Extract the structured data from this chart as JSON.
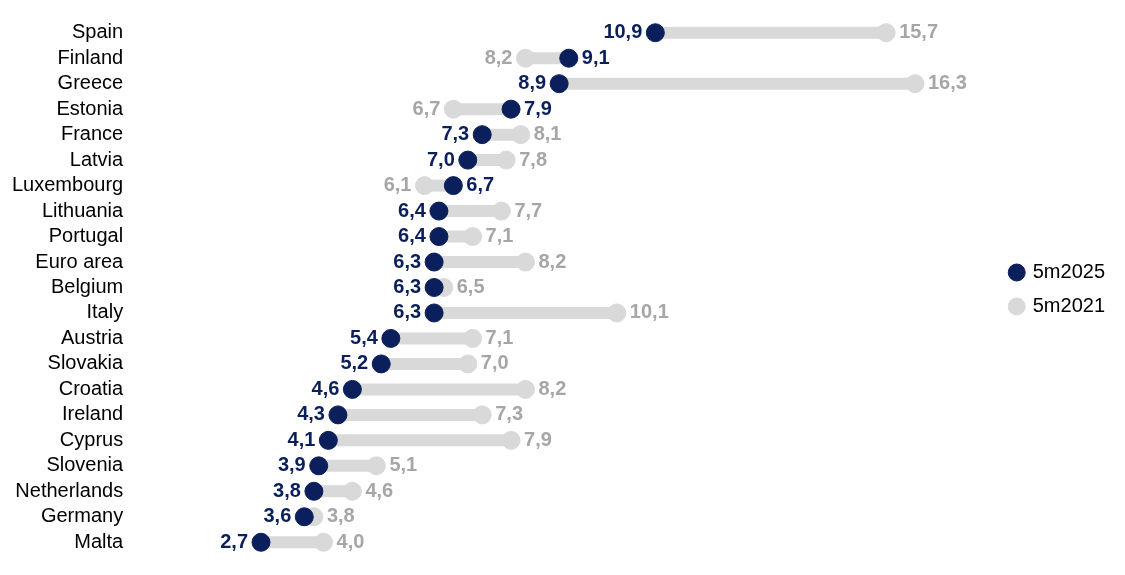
{
  "chart_data": {
    "type": "scatter",
    "orientation": "horizontal",
    "categories": [
      "Spain",
      "Finland",
      "Greece",
      "Estonia",
      "France",
      "Latvia",
      "Luxembourg",
      "Lithuania",
      "Portugal",
      "Euro area",
      "Belgium",
      "Italy",
      "Austria",
      "Slovakia",
      "Croatia",
      "Ireland",
      "Cyprus",
      "Slovenia",
      "Netherlands",
      "Germany",
      "Malta"
    ],
    "series": [
      {
        "name": "5m2025",
        "color": "#0b1f5c",
        "values": [
          10.9,
          9.1,
          8.9,
          7.9,
          7.3,
          7.0,
          6.7,
          6.4,
          6.4,
          6.3,
          6.3,
          6.3,
          5.4,
          5.2,
          4.6,
          4.3,
          4.1,
          3.9,
          3.8,
          3.6,
          2.7
        ],
        "value_labels": [
          "10,9",
          "9,1",
          "8,9",
          "7,9",
          "7,3",
          "7,0",
          "6,7",
          "6,4",
          "6,4",
          "6,3",
          "6,3",
          "6,3",
          "5,4",
          "5,2",
          "4,6",
          "4,3",
          "4,1",
          "3,9",
          "3,8",
          "3,6",
          "2,7"
        ]
      },
      {
        "name": "5m2021",
        "color": "#d9d9d9",
        "values": [
          15.7,
          8.2,
          16.3,
          6.7,
          8.1,
          7.8,
          6.1,
          7.7,
          7.1,
          8.2,
          6.5,
          10.1,
          7.1,
          7.0,
          8.2,
          7.3,
          7.9,
          5.1,
          4.6,
          3.8,
          4.0
        ],
        "value_labels": [
          "15,7",
          "8,2",
          "16,3",
          "6,7",
          "8,1",
          "7,8",
          "6,1",
          "7,7",
          "7,1",
          "8,2",
          "6,5",
          "10,1",
          "7,1",
          "7,0",
          "8,2",
          "7,3",
          "7,9",
          "5,1",
          "4,6",
          "3,8",
          "4,0"
        ]
      }
    ],
    "tick_labels": "y",
    "legend": "right",
    "marker": "circle",
    "grid": false
  }
}
